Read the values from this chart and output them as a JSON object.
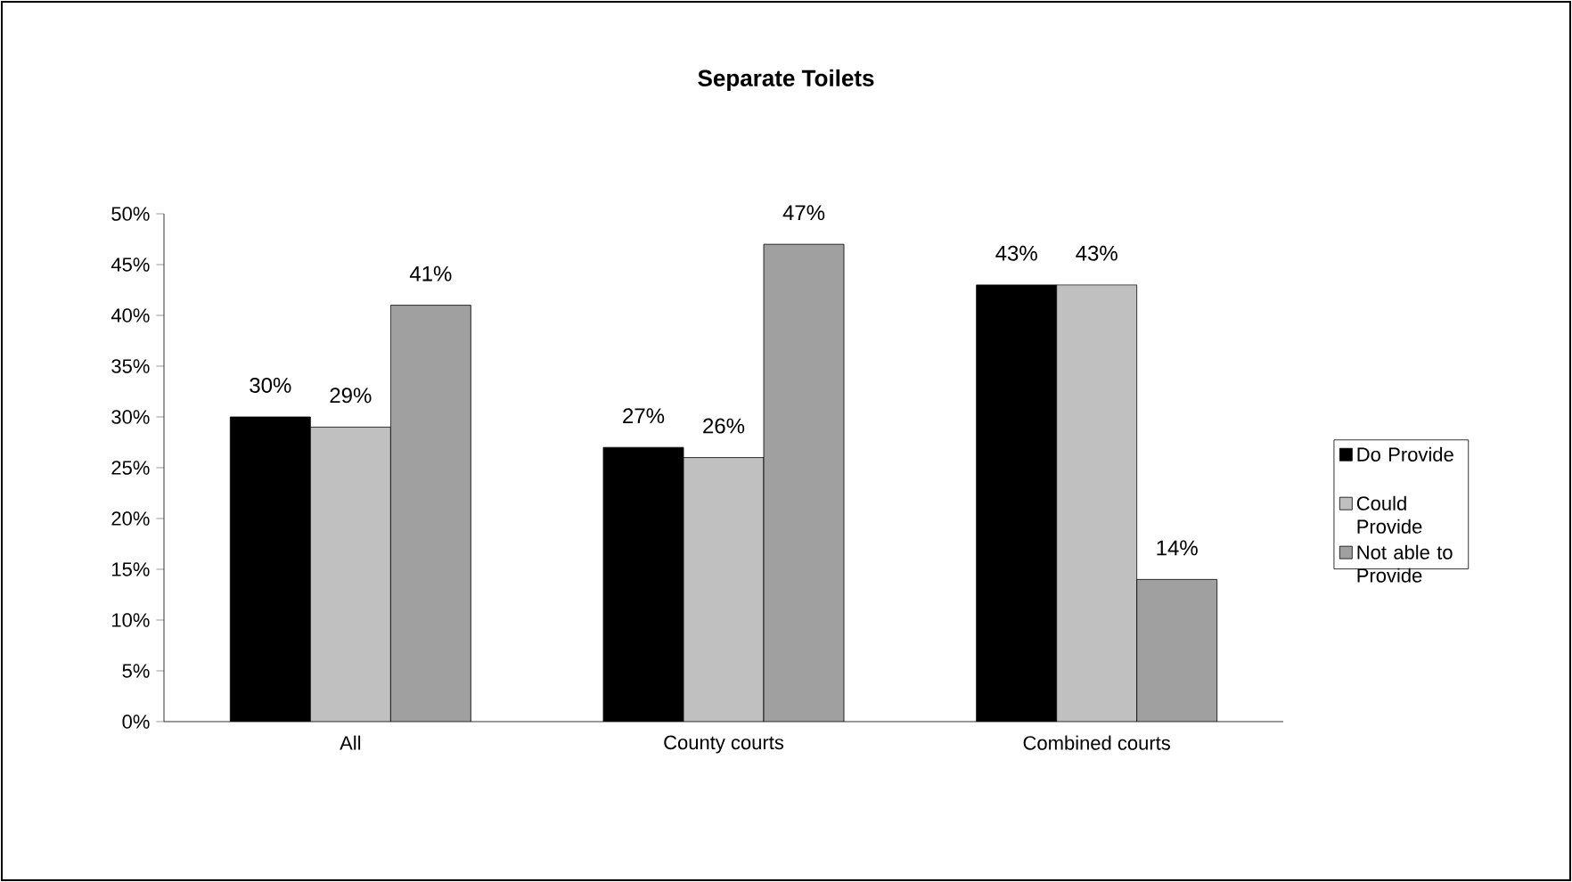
{
  "chart_data": {
    "type": "bar",
    "title": "Separate Toilets",
    "categories": [
      "All",
      "County courts",
      "Combined courts"
    ],
    "series": [
      {
        "name": "Do Provide",
        "color": "#000000",
        "values": [
          30,
          27,
          43
        ],
        "value_labels": [
          "30%",
          "27%",
          "43%"
        ]
      },
      {
        "name": "Could Provide",
        "color": "#c0c0c0",
        "values": [
          29,
          26,
          43
        ],
        "value_labels": [
          "29%",
          "26%",
          "43%"
        ]
      },
      {
        "name": "Not able to Provide",
        "color": "#a0a0a0",
        "values": [
          41,
          47,
          14
        ],
        "value_labels": [
          "41%",
          "47%",
          "14%"
        ]
      }
    ],
    "ylim": [
      0,
      50
    ],
    "yticks": [
      {
        "value": 0,
        "label": "0%"
      },
      {
        "value": 5,
        "label": "5%"
      },
      {
        "value": 10,
        "label": "10%"
      },
      {
        "value": 15,
        "label": "15%"
      },
      {
        "value": 20,
        "label": "20%"
      },
      {
        "value": 25,
        "label": "25%"
      },
      {
        "value": 30,
        "label": "30%"
      },
      {
        "value": 35,
        "label": "35%"
      },
      {
        "value": 40,
        "label": "40%"
      },
      {
        "value": 45,
        "label": "45%"
      },
      {
        "value": 50,
        "label": "50%"
      }
    ],
    "grid": false,
    "legend": "right"
  }
}
